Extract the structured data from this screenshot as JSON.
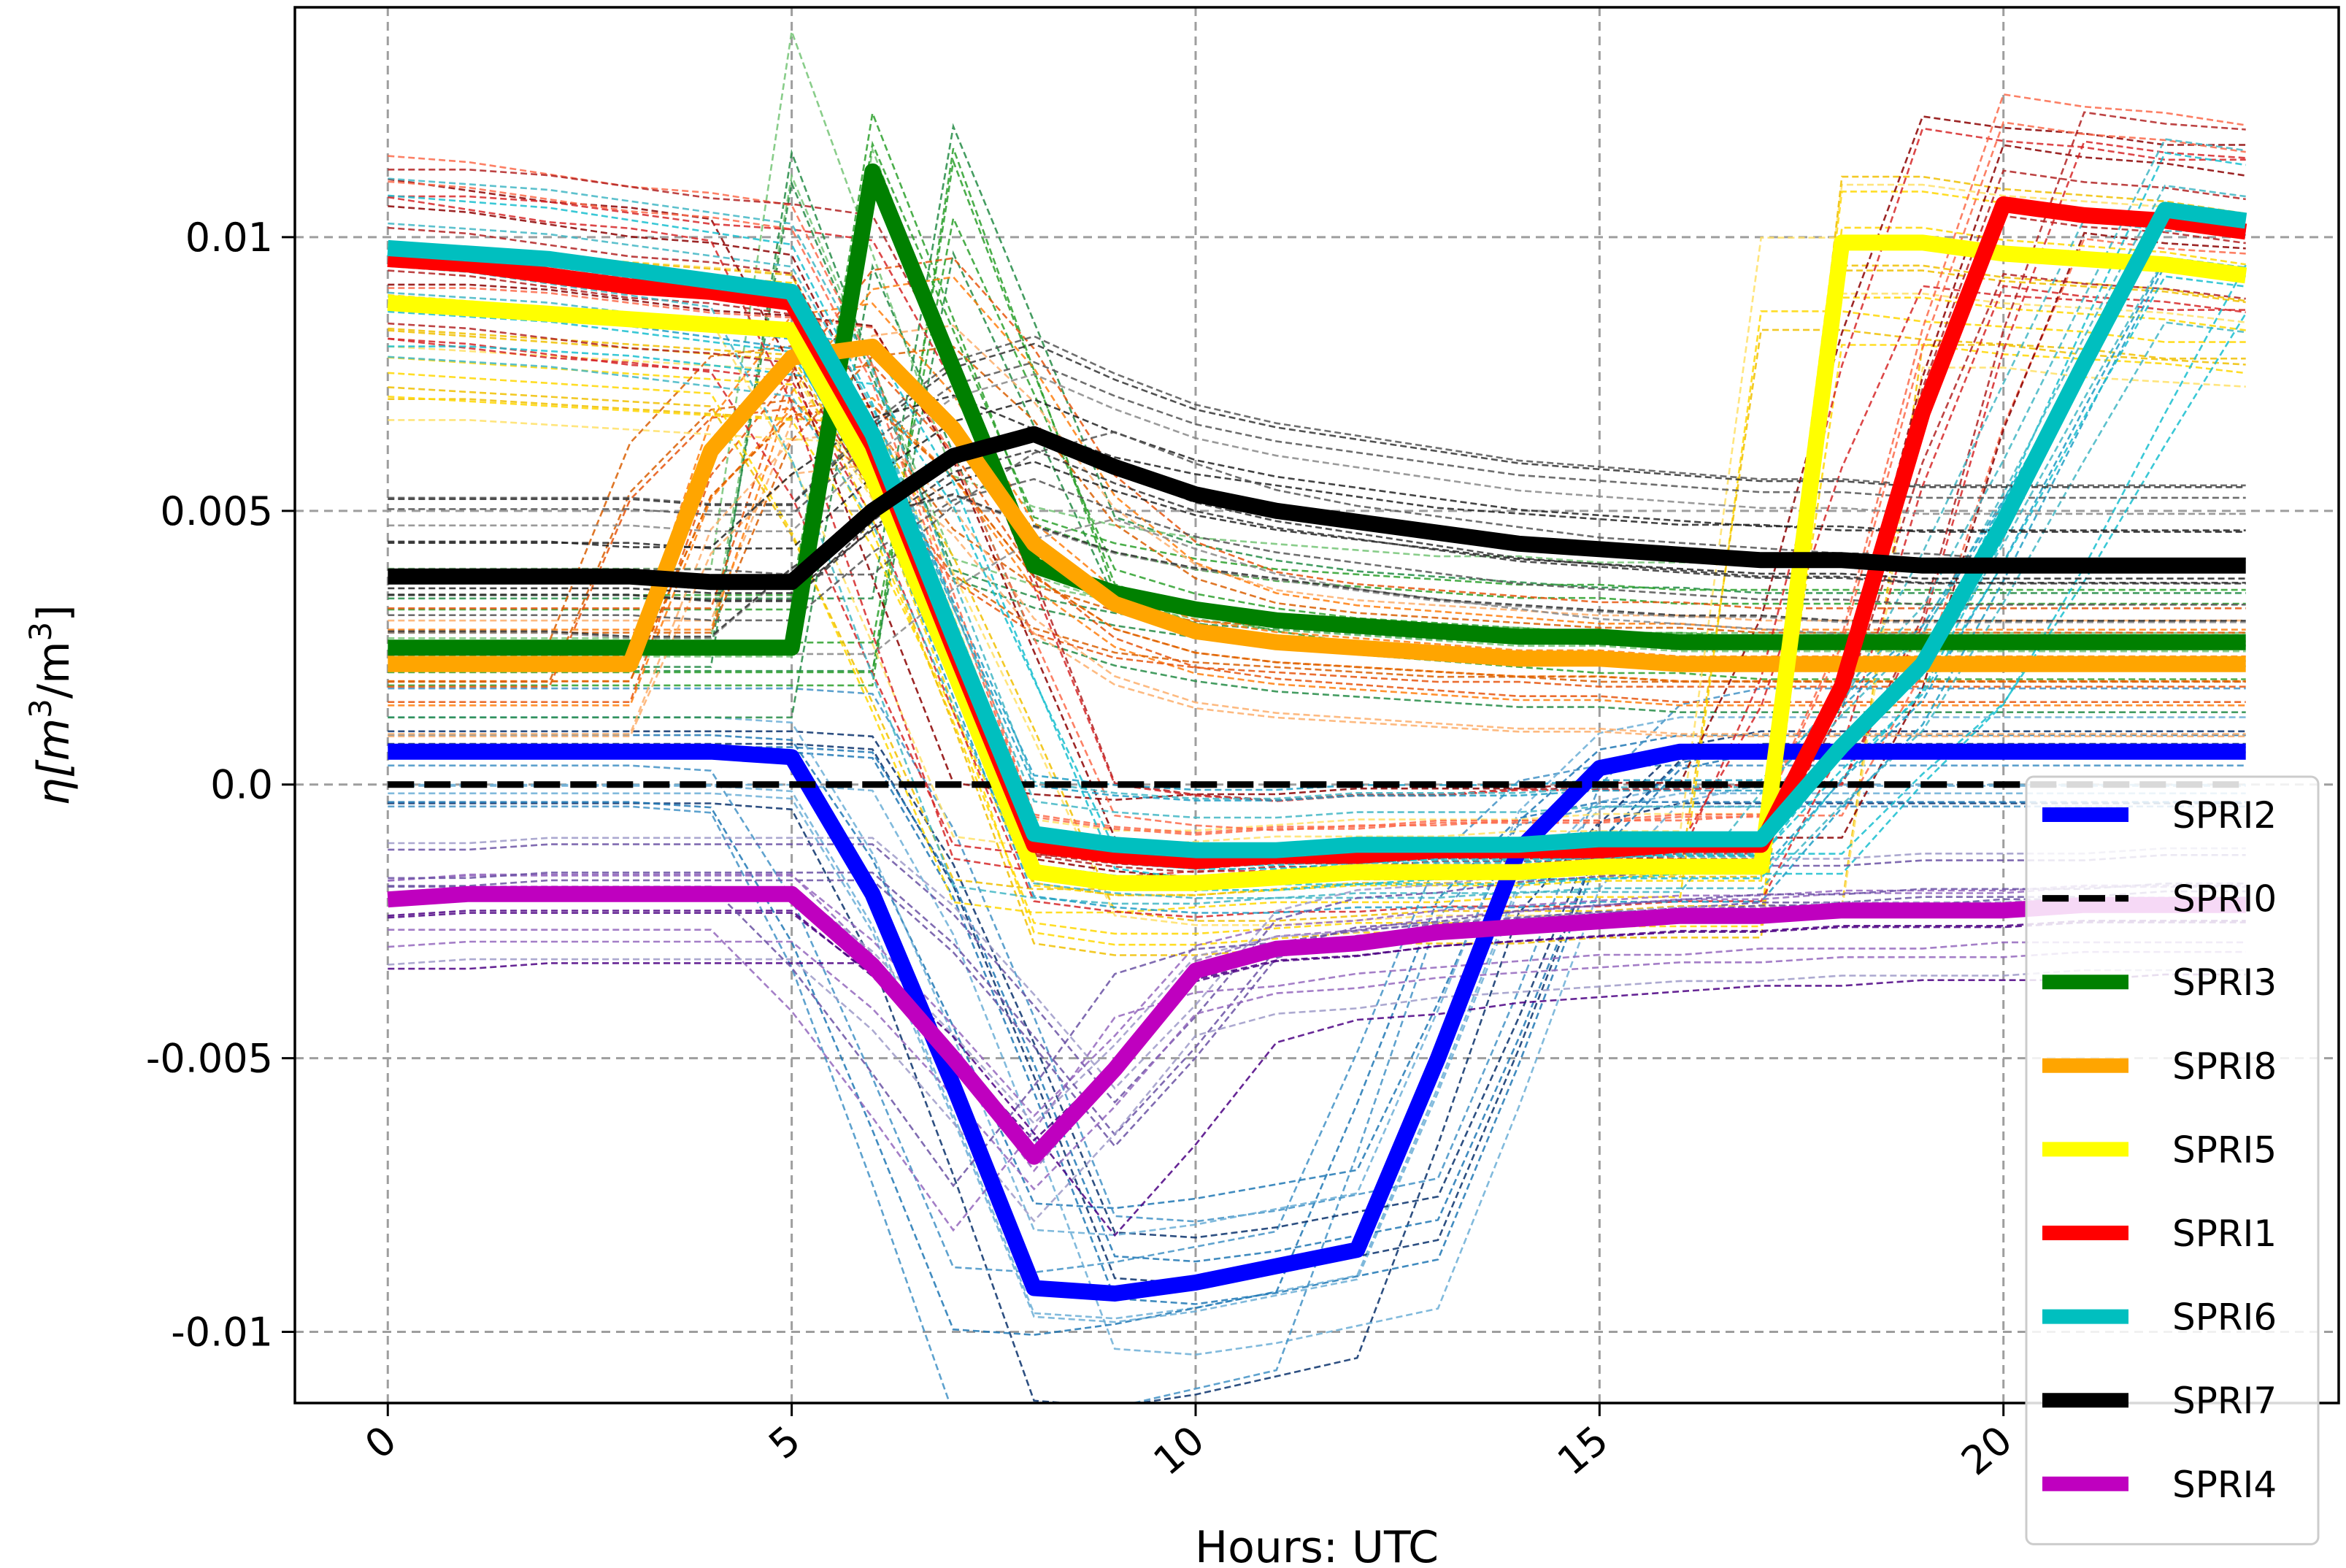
{
  "chart_data": {
    "type": "line",
    "xlabel": "Hours: UTC",
    "ylabel": "η[m³/m³]",
    "ylabel_parts": {
      "prefix": "η[m",
      "sup1": "3",
      "mid": "/m",
      "sup2": "3",
      "suffix": "]"
    },
    "xlim": [
      -1.15,
      24.15
    ],
    "ylim": [
      -0.0113,
      0.0142
    ],
    "xticks": [
      0,
      5,
      10,
      15,
      20
    ],
    "xtick_labels": [
      "0",
      "5",
      "10",
      "15",
      "20"
    ],
    "yticks": [
      -0.01,
      -0.005,
      0.0,
      0.005,
      0.01
    ],
    "ytick_labels": [
      "-0.01",
      "-0.005",
      "0.0",
      "0.005",
      "0.01"
    ],
    "grid": true,
    "legend_position": "bottom-right",
    "x": [
      0,
      1,
      2,
      3,
      4,
      5,
      6,
      7,
      8,
      9,
      10,
      11,
      12,
      13,
      14,
      15,
      16,
      17,
      18,
      19,
      20,
      21,
      22,
      23
    ],
    "series": [
      {
        "name": "SPRI2",
        "color": "#0000ff",
        "style": "solid",
        "values": [
          0.0006,
          0.0006,
          0.0006,
          0.0006,
          0.0006,
          0.0005,
          -0.002,
          -0.0055,
          -0.0092,
          -0.0093,
          -0.0091,
          -0.0088,
          -0.0085,
          -0.005,
          -0.0012,
          0.0003,
          0.0006,
          0.0006,
          0.0006,
          0.0006,
          0.0006,
          0.0006,
          0.0006,
          0.0006
        ]
      },
      {
        "name": "SPRI0",
        "color": "#000000",
        "style": "dashed",
        "values": [
          0,
          0,
          0,
          0,
          0,
          0,
          0,
          0,
          0,
          0,
          0,
          0,
          0,
          0,
          0,
          0,
          0,
          0,
          0,
          0,
          0,
          0,
          0,
          0
        ]
      },
      {
        "name": "SPRI3",
        "color": "#008000",
        "style": "solid",
        "values": [
          0.0025,
          0.0025,
          0.0025,
          0.0025,
          0.0025,
          0.0025,
          0.0112,
          0.0076,
          0.004,
          0.0035,
          0.0032,
          0.003,
          0.0029,
          0.0028,
          0.0027,
          0.0027,
          0.0026,
          0.0026,
          0.0026,
          0.0026,
          0.0026,
          0.0026,
          0.0026,
          0.0026
        ]
      },
      {
        "name": "SPRI8",
        "color": "#ffa500",
        "style": "solid",
        "values": [
          0.0022,
          0.0022,
          0.0022,
          0.0022,
          0.0061,
          0.0078,
          0.008,
          0.0065,
          0.0044,
          0.0033,
          0.0028,
          0.0026,
          0.0025,
          0.0024,
          0.0023,
          0.0023,
          0.0022,
          0.0022,
          0.0022,
          0.0022,
          0.0022,
          0.0022,
          0.0022,
          0.0022
        ]
      },
      {
        "name": "SPRI5",
        "color": "#ffff00",
        "style": "solid",
        "values": [
          0.0088,
          0.0087,
          0.0086,
          0.0085,
          0.0084,
          0.0083,
          0.0056,
          0.0021,
          -0.0016,
          -0.0018,
          -0.0018,
          -0.0017,
          -0.0016,
          -0.0016,
          -0.0016,
          -0.0015,
          -0.0015,
          -0.0015,
          0.0099,
          0.0099,
          0.0097,
          0.0096,
          0.0095,
          0.0093
        ]
      },
      {
        "name": "SPRI1",
        "color": "#ff0000",
        "style": "solid",
        "values": [
          0.0096,
          0.0095,
          0.0093,
          0.0091,
          0.009,
          0.0088,
          0.0062,
          0.0025,
          -0.0011,
          -0.0013,
          -0.0014,
          -0.0013,
          -0.0013,
          -0.0012,
          -0.0012,
          -0.0012,
          -0.0011,
          -0.0011,
          0.0018,
          0.0068,
          0.0106,
          0.0104,
          0.0103,
          0.0101
        ]
      },
      {
        "name": "SPRI6",
        "color": "#00bfbf",
        "style": "solid",
        "values": [
          0.0098,
          0.0097,
          0.0096,
          0.0094,
          0.0092,
          0.009,
          0.0064,
          0.0027,
          -0.0009,
          -0.0011,
          -0.0012,
          -0.0012,
          -0.0011,
          -0.0011,
          -0.0011,
          -0.001,
          -0.001,
          -0.001,
          0.0007,
          0.0022,
          0.0048,
          0.0077,
          0.0105,
          0.0103
        ]
      },
      {
        "name": "SPRI7",
        "color": "#000000",
        "style": "solid",
        "values": [
          0.0038,
          0.0038,
          0.0038,
          0.0038,
          0.0037,
          0.0037,
          0.005,
          0.006,
          0.0064,
          0.0058,
          0.0053,
          0.005,
          0.0048,
          0.0046,
          0.0044,
          0.0043,
          0.0042,
          0.0041,
          0.0041,
          0.004,
          0.004,
          0.004,
          0.004,
          0.004
        ]
      },
      {
        "name": "SPRI4",
        "color": "#bf00bf",
        "style": "solid",
        "values": [
          -0.0021,
          -0.002,
          -0.002,
          -0.002,
          -0.002,
          -0.002,
          -0.0033,
          -0.005,
          -0.0068,
          -0.0052,
          -0.0034,
          -0.003,
          -0.0029,
          -0.0027,
          -0.0026,
          -0.0025,
          -0.0024,
          -0.0024,
          -0.0023,
          -0.0023,
          -0.0023,
          -0.0022,
          -0.0022,
          -0.0022
        ]
      }
    ],
    "ensemble_members_note": ""
  }
}
